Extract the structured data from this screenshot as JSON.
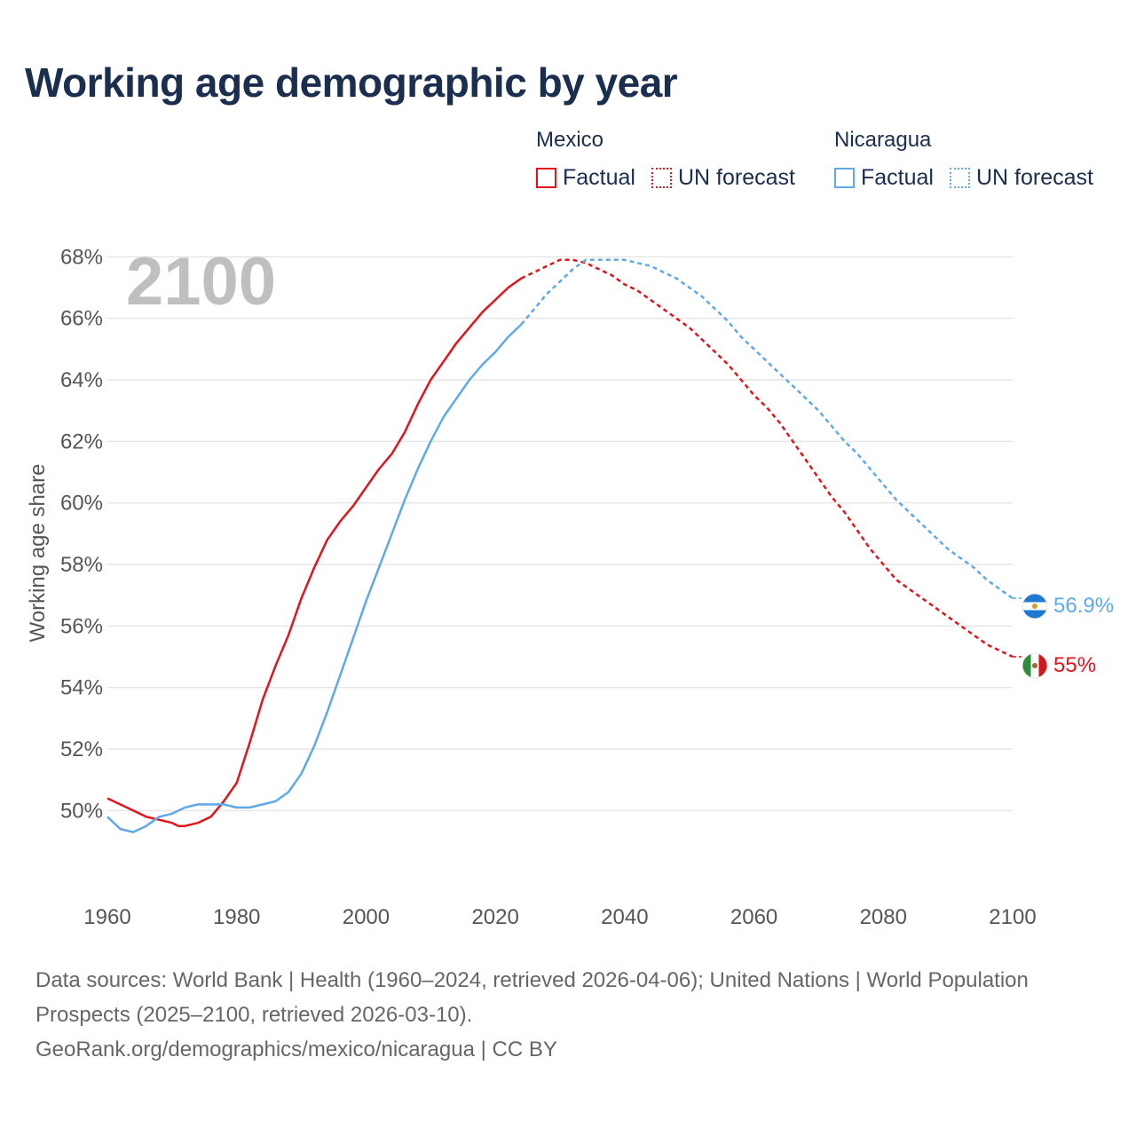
{
  "title": "Working age demographic by year",
  "year_label": "2100",
  "legend": {
    "groups": [
      {
        "country": "Mexico",
        "items": [
          {
            "label": "Factual",
            "style": "solid",
            "color": "#e3131b"
          },
          {
            "label": "UN forecast",
            "style": "dotted",
            "color": "#e3131b"
          }
        ]
      },
      {
        "country": "Nicaragua",
        "items": [
          {
            "label": "Factual",
            "style": "solid",
            "color": "#5ea9e8"
          },
          {
            "label": "UN forecast",
            "style": "dotted",
            "color": "#5ea9e8"
          }
        ]
      }
    ]
  },
  "footer": {
    "sources": "Data sources: World Bank | Health (1960–2024, retrieved 2026-04-06); United Nations | World Population Prospects (2025–2100, retrieved 2026-03-10).",
    "credit": "GeoRank.org/demographics/mexico/nicaragua | CC BY"
  },
  "chart_data": {
    "type": "line",
    "ylabel": "Working age share",
    "xlabel": "",
    "xlim": [
      1960,
      2100
    ],
    "ylim": [
      47.5,
      68.5
    ],
    "x_ticks": [
      "1960",
      "1980",
      "2000",
      "2020",
      "2040",
      "2060",
      "2080",
      "2100"
    ],
    "x_tick_values": [
      1960,
      1980,
      2000,
      2020,
      2040,
      2060,
      2080,
      2100
    ],
    "y_ticks": [
      "50%",
      "52%",
      "54%",
      "56%",
      "58%",
      "60%",
      "62%",
      "64%",
      "66%",
      "68%"
    ],
    "y_tick_values": [
      50,
      52,
      54,
      56,
      58,
      60,
      62,
      64,
      66,
      68
    ],
    "factual_end_year": 2024,
    "series": [
      {
        "name": "Mexico",
        "color": "#e3131b",
        "end_label": "55%",
        "points": [
          [
            1960,
            50.4
          ],
          [
            1962,
            50.2
          ],
          [
            1964,
            50.0
          ],
          [
            1966,
            49.8
          ],
          [
            1968,
            49.7
          ],
          [
            1970,
            49.6
          ],
          [
            1971,
            49.5
          ],
          [
            1972,
            49.5
          ],
          [
            1974,
            49.6
          ],
          [
            1976,
            49.8
          ],
          [
            1978,
            50.3
          ],
          [
            1980,
            50.9
          ],
          [
            1982,
            52.2
          ],
          [
            1984,
            53.6
          ],
          [
            1986,
            54.7
          ],
          [
            1988,
            55.7
          ],
          [
            1990,
            56.9
          ],
          [
            1992,
            57.9
          ],
          [
            1994,
            58.8
          ],
          [
            1996,
            59.4
          ],
          [
            1998,
            59.9
          ],
          [
            2000,
            60.5
          ],
          [
            2002,
            61.1
          ],
          [
            2004,
            61.6
          ],
          [
            2006,
            62.3
          ],
          [
            2008,
            63.2
          ],
          [
            2010,
            64.0
          ],
          [
            2012,
            64.6
          ],
          [
            2014,
            65.2
          ],
          [
            2016,
            65.7
          ],
          [
            2018,
            66.2
          ],
          [
            2020,
            66.6
          ],
          [
            2022,
            67.0
          ],
          [
            2024,
            67.3
          ],
          [
            2026,
            67.5
          ],
          [
            2028,
            67.7
          ],
          [
            2030,
            67.9
          ],
          [
            2032,
            67.9
          ],
          [
            2034,
            67.8
          ],
          [
            2036,
            67.6
          ],
          [
            2038,
            67.4
          ],
          [
            2040,
            67.1
          ],
          [
            2042,
            66.9
          ],
          [
            2044,
            66.6
          ],
          [
            2046,
            66.3
          ],
          [
            2048,
            66.0
          ],
          [
            2050,
            65.7
          ],
          [
            2052,
            65.3
          ],
          [
            2054,
            64.9
          ],
          [
            2056,
            64.5
          ],
          [
            2058,
            64.0
          ],
          [
            2060,
            63.5
          ],
          [
            2062,
            63.1
          ],
          [
            2064,
            62.6
          ],
          [
            2066,
            62.0
          ],
          [
            2068,
            61.4
          ],
          [
            2070,
            60.8
          ],
          [
            2072,
            60.2
          ],
          [
            2074,
            59.7
          ],
          [
            2076,
            59.1
          ],
          [
            2078,
            58.5
          ],
          [
            2080,
            58.0
          ],
          [
            2082,
            57.5
          ],
          [
            2084,
            57.2
          ],
          [
            2086,
            56.9
          ],
          [
            2088,
            56.6
          ],
          [
            2090,
            56.3
          ],
          [
            2092,
            56.0
          ],
          [
            2094,
            55.7
          ],
          [
            2096,
            55.4
          ],
          [
            2098,
            55.2
          ],
          [
            2100,
            55.0
          ]
        ]
      },
      {
        "name": "Nicaragua",
        "color": "#5ea9e8",
        "end_label": "56.9%",
        "points": [
          [
            1960,
            49.8
          ],
          [
            1962,
            49.4
          ],
          [
            1964,
            49.3
          ],
          [
            1966,
            49.5
          ],
          [
            1968,
            49.8
          ],
          [
            1970,
            49.9
          ],
          [
            1972,
            50.1
          ],
          [
            1974,
            50.2
          ],
          [
            1976,
            50.2
          ],
          [
            1978,
            50.2
          ],
          [
            1980,
            50.1
          ],
          [
            1982,
            50.1
          ],
          [
            1984,
            50.2
          ],
          [
            1986,
            50.3
          ],
          [
            1988,
            50.6
          ],
          [
            1990,
            51.2
          ],
          [
            1992,
            52.1
          ],
          [
            1994,
            53.2
          ],
          [
            1996,
            54.4
          ],
          [
            1998,
            55.6
          ],
          [
            2000,
            56.8
          ],
          [
            2002,
            57.9
          ],
          [
            2004,
            59.0
          ],
          [
            2006,
            60.1
          ],
          [
            2008,
            61.1
          ],
          [
            2010,
            62.0
          ],
          [
            2012,
            62.8
          ],
          [
            2014,
            63.4
          ],
          [
            2016,
            64.0
          ],
          [
            2018,
            64.5
          ],
          [
            2020,
            64.9
          ],
          [
            2022,
            65.4
          ],
          [
            2024,
            65.8
          ],
          [
            2026,
            66.3
          ],
          [
            2028,
            66.8
          ],
          [
            2030,
            67.2
          ],
          [
            2032,
            67.6
          ],
          [
            2034,
            67.9
          ],
          [
            2036,
            67.9
          ],
          [
            2038,
            67.9
          ],
          [
            2040,
            67.9
          ],
          [
            2042,
            67.8
          ],
          [
            2044,
            67.7
          ],
          [
            2046,
            67.5
          ],
          [
            2048,
            67.3
          ],
          [
            2050,
            67.0
          ],
          [
            2052,
            66.7
          ],
          [
            2054,
            66.3
          ],
          [
            2056,
            65.9
          ],
          [
            2058,
            65.4
          ],
          [
            2060,
            65.0
          ],
          [
            2062,
            64.6
          ],
          [
            2064,
            64.2
          ],
          [
            2066,
            63.8
          ],
          [
            2068,
            63.4
          ],
          [
            2070,
            63.0
          ],
          [
            2072,
            62.5
          ],
          [
            2074,
            62.0
          ],
          [
            2076,
            61.6
          ],
          [
            2078,
            61.1
          ],
          [
            2080,
            60.6
          ],
          [
            2082,
            60.1
          ],
          [
            2084,
            59.7
          ],
          [
            2086,
            59.3
          ],
          [
            2088,
            58.9
          ],
          [
            2090,
            58.5
          ],
          [
            2092,
            58.2
          ],
          [
            2094,
            57.9
          ],
          [
            2096,
            57.5
          ],
          [
            2098,
            57.2
          ],
          [
            2100,
            56.9
          ]
        ]
      }
    ]
  }
}
